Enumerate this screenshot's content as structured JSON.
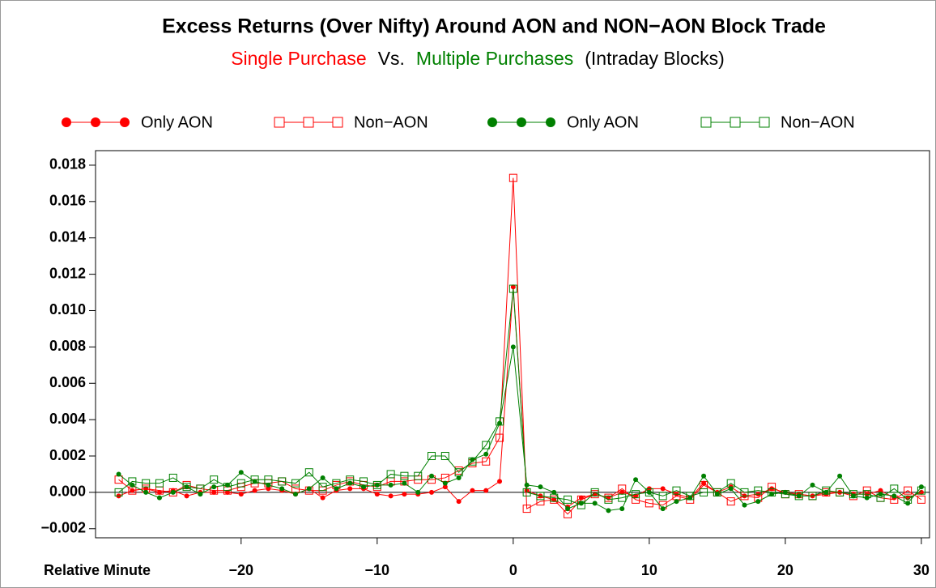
{
  "chart_data": {
    "type": "line",
    "title": "Excess Returns (Over Nifty) Around AON and NON−AON Block Trade",
    "subtitle": [
      {
        "text": "Single Purchase",
        "color": "#ff0000"
      },
      {
        "text": "Vs.",
        "color": "#000000"
      },
      {
        "text": "Multiple Purchases",
        "color": "#008000"
      },
      {
        "text": "(Intraday Blocks)",
        "color": "#000000"
      }
    ],
    "x_label": "Relative Minute",
    "x": [
      -29,
      -28,
      -27,
      -26,
      -25,
      -24,
      -23,
      -22,
      -21,
      -20,
      -19,
      -18,
      -17,
      -16,
      -15,
      -14,
      -13,
      -12,
      -11,
      -10,
      -9,
      -8,
      -7,
      -6,
      -5,
      -4,
      -3,
      -2,
      -1,
      0,
      1,
      2,
      3,
      4,
      5,
      6,
      7,
      8,
      9,
      10,
      11,
      12,
      13,
      14,
      15,
      16,
      17,
      18,
      19,
      20,
      21,
      22,
      23,
      24,
      25,
      26,
      27,
      28,
      29,
      30
    ],
    "series": [
      {
        "name": "Only AON",
        "color": "#ff0000",
        "marker": "dot",
        "values": [
          -0.0002,
          0.0001,
          0.0002,
          0.0,
          0.0001,
          -0.0002,
          0.0,
          0.0,
          0.0,
          -0.0001,
          0.0001,
          0.0002,
          0.0001,
          -0.0001,
          0.0002,
          -0.0003,
          0.0001,
          0.0002,
          0.0002,
          -0.0001,
          -0.0002,
          -0.0001,
          -0.0001,
          0.0,
          0.0003,
          -0.0005,
          0.0001,
          0.0001,
          0.0006,
          0.0113,
          0.0001,
          -0.0002,
          -0.0004,
          -0.0008,
          -0.0003,
          -0.0001,
          -0.0003,
          0.0,
          -0.0002,
          0.0002,
          0.0002,
          -0.0001,
          -0.0003,
          0.0005,
          0.0,
          0.0003,
          -0.0002,
          -0.0001,
          0.0002,
          0.0,
          -0.0001,
          -0.0002,
          -0.0001,
          0.0,
          -0.0001,
          -0.0001,
          0.0001,
          -0.0003,
          -0.0003,
          0.0
        ]
      },
      {
        "name": "Non−AON",
        "color": "#ff0000",
        "marker": "square",
        "values": [
          0.0007,
          0.0001,
          0.0002,
          0.0001,
          0.0,
          0.0004,
          0.0002,
          0.0001,
          0.0001,
          0.0003,
          0.0005,
          0.0005,
          0.0006,
          0.0002,
          0.0001,
          0.0001,
          0.0004,
          0.0006,
          0.0004,
          0.0003,
          0.0006,
          0.0006,
          0.0007,
          0.0007,
          0.0008,
          0.0012,
          0.0016,
          0.0017,
          0.003,
          0.0173,
          -0.0009,
          -0.0005,
          -0.0004,
          -0.0012,
          -0.0004,
          -0.0001,
          -0.0003,
          0.0002,
          -0.0004,
          -0.0006,
          -0.0007,
          -0.0002,
          -0.0004,
          0.0004,
          0.0,
          -0.0005,
          -0.0002,
          -0.0003,
          0.0003,
          -0.0001,
          -0.0001,
          -0.0002,
          0.0,
          0.0,
          -0.0002,
          0.0001,
          -0.0003,
          -0.0004,
          0.0001,
          -0.0004
        ]
      },
      {
        "name": "Only AON",
        "color": "#008000",
        "marker": "dot",
        "values": [
          0.001,
          0.0004,
          0.0,
          -0.0003,
          0.0,
          0.0003,
          -0.0001,
          0.0003,
          0.0004,
          0.0011,
          0.0006,
          0.0004,
          0.0002,
          -0.0001,
          0.0002,
          0.0008,
          0.0002,
          0.0005,
          0.0003,
          0.0004,
          0.0004,
          0.0005,
          0.0,
          0.0009,
          0.0005,
          0.0008,
          0.0018,
          0.0021,
          0.0038,
          0.008,
          0.0004,
          0.0003,
          0.0,
          -0.0009,
          -0.0006,
          -0.0006,
          -0.001,
          -0.0009,
          0.0007,
          0.0,
          -0.0009,
          -0.0005,
          -0.0003,
          0.0009,
          -0.0001,
          0.0002,
          -0.0007,
          -0.0005,
          -0.0001,
          0.0,
          -0.0002,
          0.0004,
          0.0,
          0.0009,
          -0.0002,
          -0.0003,
          -0.0001,
          -0.0002,
          -0.0006,
          0.0003
        ]
      },
      {
        "name": "Non−AON",
        "color": "#008000",
        "marker": "square",
        "values": [
          0.0,
          0.0006,
          0.0005,
          0.0005,
          0.0008,
          0.0003,
          0.0002,
          0.0007,
          0.0003,
          0.0005,
          0.0007,
          0.0007,
          0.0006,
          0.0005,
          0.0011,
          0.0003,
          0.0005,
          0.0007,
          0.0006,
          0.0004,
          0.001,
          0.0009,
          0.0009,
          0.002,
          0.002,
          0.0011,
          0.0017,
          0.0026,
          0.0039,
          0.0112,
          0.0,
          -0.0002,
          -0.0003,
          -0.0004,
          -0.0007,
          0.0,
          -0.0004,
          -0.0003,
          -0.0001,
          0.0,
          -0.0002,
          0.0001,
          -0.0002,
          0.0,
          0.0,
          0.0005,
          0.0,
          0.0001,
          0.0,
          -0.0001,
          -0.0002,
          -0.0002,
          0.0001,
          0.0,
          -0.0001,
          -0.0001,
          -0.0003,
          0.0002,
          -0.0004,
          0.0001
        ]
      }
    ],
    "xlim": [
      -30.7,
      30.6
    ],
    "xticks": [
      {
        "value": -20,
        "label": "−20"
      },
      {
        "value": -10,
        "label": "−10"
      },
      0,
      10,
      20,
      30
    ],
    "ylim": [
      -0.0025,
      0.0188
    ],
    "yticks": [
      {
        "value": -0.002,
        "label": "−0.002"
      },
      {
        "value": 0,
        "label": "0.000"
      },
      0.002,
      0.004,
      0.006,
      0.008,
      {
        "value": 0.01,
        "label": "0.010"
      },
      0.012,
      0.014,
      0.016,
      0.018
    ]
  }
}
